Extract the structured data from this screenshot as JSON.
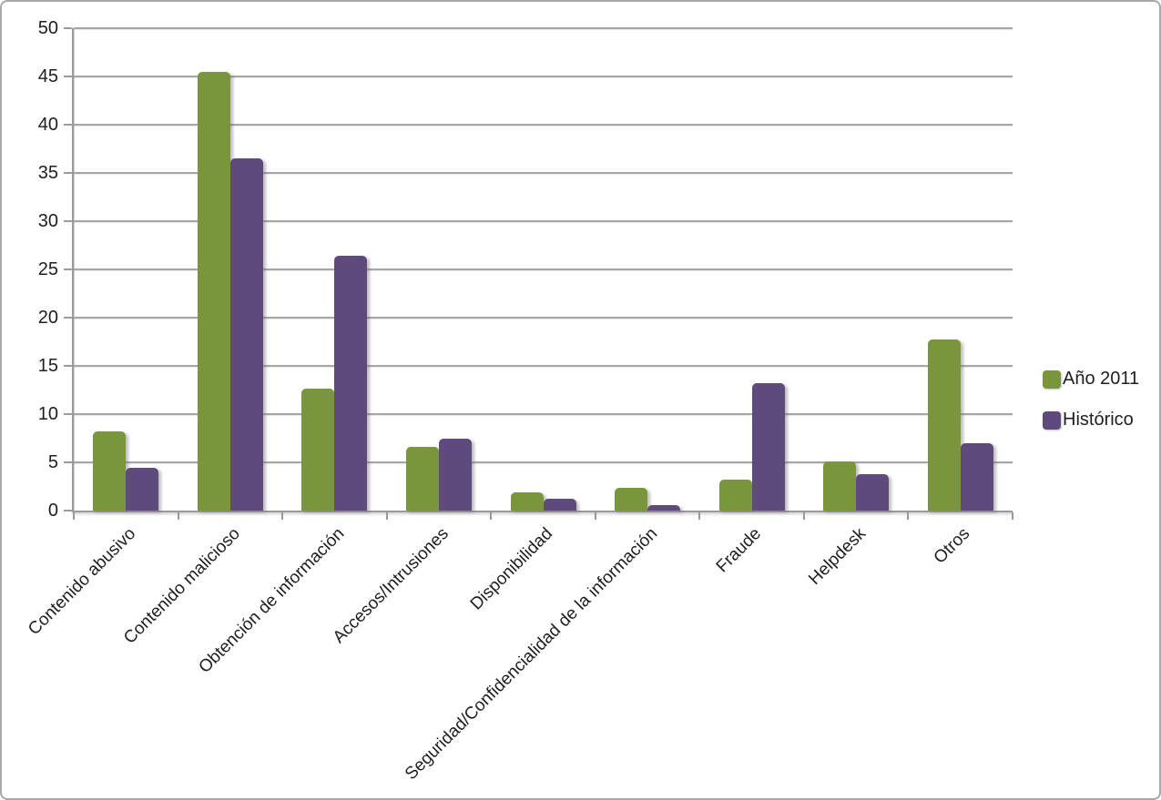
{
  "chart_data": {
    "type": "bar",
    "title": "",
    "xlabel": "",
    "ylabel": "",
    "categories": [
      "Contenido abusivo",
      "Contenido malicioso",
      "Obtención de información",
      "Accesos/Intrusiones",
      "Disponibilidad",
      "Seguridad/Confidencialidad de la información",
      "Fraude",
      "Helpdesk",
      "Otros"
    ],
    "series": [
      {
        "name": "Año 2011",
        "color": "#7a963d",
        "values": [
          8.2,
          45.5,
          12.6,
          6.6,
          1.9,
          2.4,
          3.2,
          5.1,
          17.7
        ]
      },
      {
        "name": "Histórico",
        "color": "#5e4a7c",
        "values": [
          4.4,
          36.5,
          26.4,
          7.5,
          1.2,
          0.6,
          13.2,
          3.8,
          7.0
        ]
      }
    ],
    "ylim": [
      0,
      50
    ],
    "yticks": [
      0,
      5,
      10,
      15,
      20,
      25,
      30,
      35,
      40,
      45,
      50
    ],
    "grid": true,
    "gridlines": "horizontal",
    "legend_position": "right",
    "x_tick_label_rotation_deg": 45
  },
  "colors": {
    "gridline": "#a6a6a6",
    "axis": "#9a9a9a",
    "text": "#1f1f1f",
    "background": "#ffffff",
    "frame_border": "#a9a9a9"
  }
}
